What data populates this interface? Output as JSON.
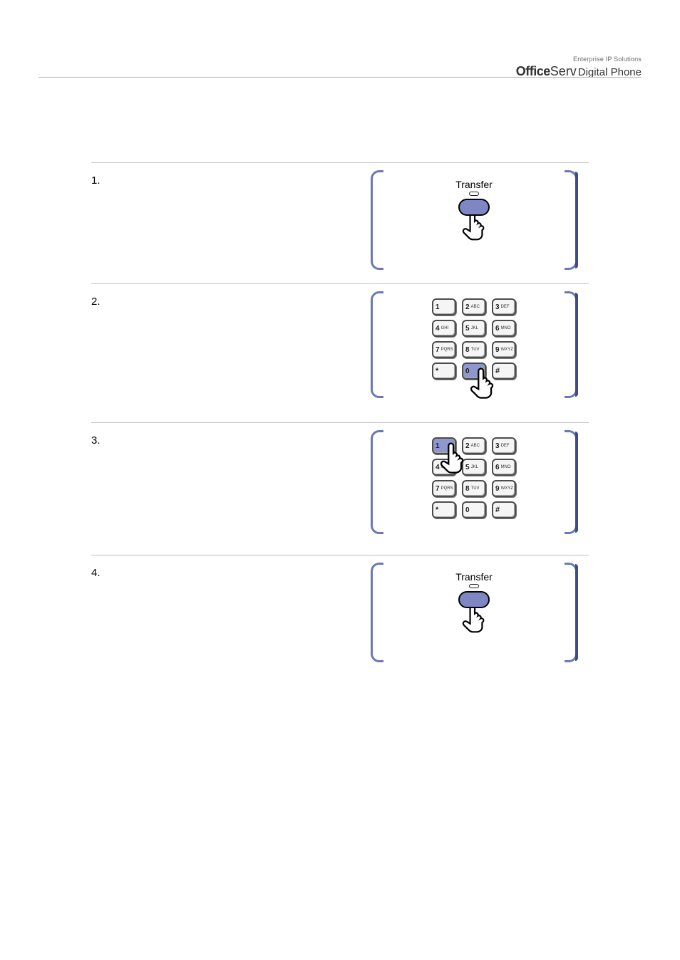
{
  "brand": {
    "tagline": "Enterprise IP Solutions",
    "part1": "Office",
    "part2": "Serv",
    "part3": "Digital Phone"
  },
  "colors": {
    "bracket_left": "#6c78b5",
    "bracket_right_shadow": "#3f4a88",
    "button_fill": "#7e86c4",
    "key_pressed": "#8f97cf",
    "rule": "#c0c0c0"
  },
  "keypad": {
    "keys": [
      {
        "num": "1",
        "letters": ""
      },
      {
        "num": "2",
        "letters": "ABC"
      },
      {
        "num": "3",
        "letters": "DEF"
      },
      {
        "num": "4",
        "letters": "GHI"
      },
      {
        "num": "5",
        "letters": "JKL"
      },
      {
        "num": "6",
        "letters": "MNO"
      },
      {
        "num": "7",
        "letters": "PQRS"
      },
      {
        "num": "8",
        "letters": "TUV"
      },
      {
        "num": "9",
        "letters": "WXYZ"
      },
      {
        "num": "*",
        "letters": ""
      },
      {
        "num": "0",
        "letters": ""
      },
      {
        "num": "#",
        "letters": ""
      }
    ]
  },
  "steps": [
    {
      "num": "1.",
      "text": "",
      "graphic": "transfer",
      "transfer_label": "Transfer"
    },
    {
      "num": "2.",
      "text": "",
      "graphic": "keypad_press_0",
      "pressed_index": 10,
      "hand_on": 10
    },
    {
      "num": "3.",
      "text": "",
      "graphic": "keypad_press_1",
      "pressed_index": 0,
      "hand_on": 0
    },
    {
      "num": "4.",
      "text": "",
      "graphic": "transfer",
      "transfer_label": "Transfer"
    }
  ]
}
